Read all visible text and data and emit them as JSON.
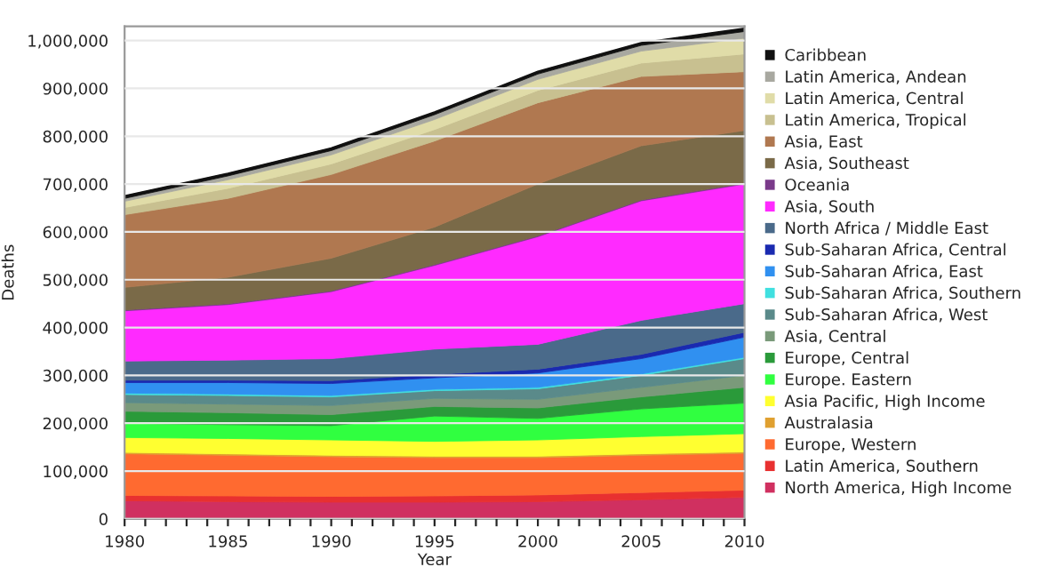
{
  "chart_data": {
    "type": "area",
    "stacked": true,
    "xlabel": "Year",
    "ylabel": "Deaths",
    "x": [
      1980,
      1985,
      1990,
      1995,
      2000,
      2005,
      2010
    ],
    "series": [
      {
        "name": "North America, High Income",
        "color": "#d03060",
        "values": [
          38000,
          36000,
          35000,
          35000,
          36000,
          40000,
          45000
        ]
      },
      {
        "name": "Latin America, Southern",
        "color": "#e83030",
        "values": [
          11000,
          12000,
          12000,
          13000,
          14000,
          15000,
          15000
        ]
      },
      {
        "name": "Europe, Western",
        "color": "#ff6a30",
        "values": [
          87000,
          85000,
          83000,
          80000,
          78000,
          78000,
          77000
        ]
      },
      {
        "name": "Australasia",
        "color": "#e0a030",
        "values": [
          3000,
          3000,
          3000,
          3000,
          3000,
          3000,
          3000
        ]
      },
      {
        "name": "Asia Pacific, High Income",
        "color": "#ffff30",
        "values": [
          31000,
          32000,
          32000,
          31000,
          34000,
          36000,
          38000
        ]
      },
      {
        "name": "Europe. Eastern",
        "color": "#30ff40",
        "values": [
          30000,
          29000,
          30000,
          53000,
          45000,
          58000,
          64000
        ]
      },
      {
        "name": "Europe, Central",
        "color": "#2a9a3a",
        "values": [
          25000,
          25000,
          23000,
          20000,
          22000,
          25000,
          33000
        ]
      },
      {
        "name": "Asia, Central",
        "color": "#7a9a7a",
        "values": [
          18000,
          18000,
          19000,
          17000,
          18000,
          20000,
          25000
        ]
      },
      {
        "name": "Sub-Saharan Africa, West",
        "color": "#5a8a8a",
        "values": [
          17000,
          18000,
          18000,
          16000,
          22000,
          25000,
          35000
        ]
      },
      {
        "name": "Sub-Saharan Africa, Southern",
        "color": "#40e0e0",
        "values": [
          3000,
          3000,
          3000,
          3000,
          3000,
          3000,
          3000
        ]
      },
      {
        "name": "Sub-Saharan Africa, East",
        "color": "#3090f0",
        "values": [
          22000,
          24000,
          25000,
          24000,
          30000,
          32000,
          42000
        ]
      },
      {
        "name": "Sub-Saharan Africa, Central",
        "color": "#1a2ab0",
        "values": [
          5000,
          5000,
          6000,
          7000,
          8000,
          9000,
          10000
        ]
      },
      {
        "name": "North Africa / Middle East",
        "color": "#4a6a8a",
        "values": [
          40000,
          42000,
          46000,
          53000,
          52000,
          71000,
          60000
        ]
      },
      {
        "name": "Asia, South",
        "color": "#ff2aff",
        "values": [
          105000,
          116000,
          140000,
          175000,
          225000,
          250000,
          250000
        ]
      },
      {
        "name": "Oceania",
        "color": "#7a3a8a",
        "values": [
          2000,
          2000,
          2000,
          2000,
          2000,
          2000,
          2000
        ]
      },
      {
        "name": "Asia, Southeast",
        "color": "#7a6a48",
        "values": [
          47000,
          55000,
          68000,
          78000,
          108000,
          113000,
          110000
        ]
      },
      {
        "name": "Asia, East",
        "color": "#b07850",
        "values": [
          152000,
          165000,
          175000,
          180000,
          170000,
          145000,
          123000
        ]
      },
      {
        "name": "Latin America, Tropical",
        "color": "#c8c090",
        "values": [
          15000,
          21000,
          22000,
          24000,
          26000,
          28000,
          37000
        ]
      },
      {
        "name": "Latin America, Central",
        "color": "#e0dca8",
        "values": [
          13000,
          18000,
          19000,
          21000,
          23000,
          25000,
          33000
        ]
      },
      {
        "name": "Latin America, Andean",
        "color": "#a8a8a0",
        "values": [
          6000,
          8000,
          9000,
          10000,
          11000,
          12000,
          14000
        ]
      },
      {
        "name": "Caribbean",
        "color": "#111111",
        "values": [
          5000,
          5000,
          5000,
          5000,
          5000,
          5000,
          6000
        ]
      }
    ],
    "xlim": [
      1980,
      2010
    ],
    "xticks": [
      1980,
      {
        "value": 1981,
        "label": null
      },
      {
        "value": 1982,
        "label": null
      },
      {
        "value": 1983,
        "label": null
      },
      {
        "value": 1984,
        "label": null
      },
      1985,
      {
        "value": 1986,
        "label": null
      },
      {
        "value": 1987,
        "label": null
      },
      {
        "value": 1988,
        "label": null
      },
      {
        "value": 1989,
        "label": null
      },
      1990,
      {
        "value": 1991,
        "label": null
      },
      {
        "value": 1992,
        "label": null
      },
      {
        "value": 1993,
        "label": null
      },
      {
        "value": 1994,
        "label": null
      },
      1995,
      {
        "value": 1996,
        "label": null
      },
      {
        "value": 1997,
        "label": null
      },
      {
        "value": 1998,
        "label": null
      },
      {
        "value": 1999,
        "label": null
      },
      2000,
      {
        "value": 2001,
        "label": null
      },
      {
        "value": 2002,
        "label": null
      },
      {
        "value": 2003,
        "label": null
      },
      {
        "value": 2004,
        "label": null
      },
      2005,
      {
        "value": 2006,
        "label": null
      },
      {
        "value": 2007,
        "label": null
      },
      {
        "value": 2008,
        "label": null
      },
      {
        "value": 2009,
        "label": null
      },
      2010
    ],
    "ylim": [
      0,
      1030000
    ],
    "yticks": [
      0,
      {
        "value": 100000,
        "label": "100,000"
      },
      {
        "value": 200000,
        "label": "200,000"
      },
      {
        "value": 300000,
        "label": "300,000"
      },
      {
        "value": 400000,
        "label": "400,000"
      },
      {
        "value": 500000,
        "label": "500,000"
      },
      {
        "value": 600000,
        "label": "600,000"
      },
      {
        "value": 700000,
        "label": "700,000"
      },
      {
        "value": 800000,
        "label": "800,000"
      },
      {
        "value": 900000,
        "label": "900,000"
      },
      {
        "value": 1000000,
        "label": "1,000,000"
      }
    ],
    "grid": "y",
    "legend": "right"
  }
}
